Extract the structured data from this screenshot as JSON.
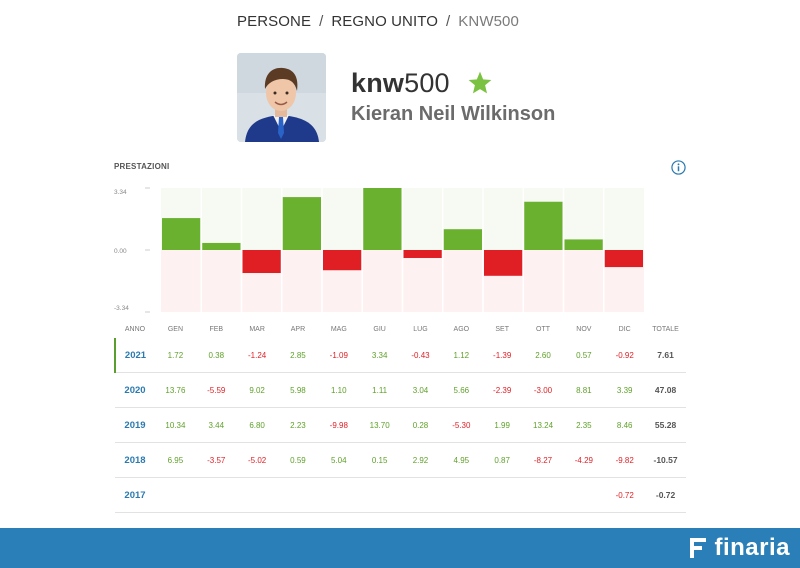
{
  "breadcrumb": {
    "items": [
      "PERSONE",
      "REGNO UNITO",
      "KNW500"
    ],
    "separator": "/"
  },
  "profile": {
    "username_letters": "knw",
    "username_digits": "500",
    "full_name": "Kieran Neil Wilkinson",
    "star_icon": "star-icon",
    "star_color": "#7cc242"
  },
  "performance": {
    "title": "PRESTAZIONI",
    "info_icon": "info-icon",
    "colors": {
      "positive": "#6ab130",
      "negative": "#e01f25",
      "positive_band": "#f7faf2",
      "negative_band": "#fdf2f1"
    }
  },
  "chart_data": {
    "type": "bar",
    "categories": [
      "GEN",
      "FEB",
      "MAR",
      "APR",
      "MAG",
      "GIU",
      "LUG",
      "AGO",
      "SET",
      "OTT",
      "NOV",
      "DIC"
    ],
    "values": [
      1.72,
      0.38,
      -1.24,
      2.85,
      -1.09,
      3.34,
      -0.43,
      1.12,
      -1.39,
      2.6,
      0.57,
      -0.92
    ],
    "ylim": [
      -3.34,
      3.34
    ],
    "ytick_labels": [
      "3.34",
      "0.00",
      "-3.34"
    ],
    "xlabel": "",
    "ylabel": "",
    "title": "",
    "legend": "none"
  },
  "table": {
    "headers": [
      "ANNO",
      "GEN",
      "FEB",
      "MAR",
      "APR",
      "MAG",
      "GIU",
      "LUG",
      "AGO",
      "SET",
      "OTT",
      "NOV",
      "DIC",
      "TOTALE"
    ],
    "rows": [
      {
        "year": "2021",
        "values": [
          "1.72",
          "0.38",
          "-1.24",
          "2.85",
          "-1.09",
          "3.34",
          "-0.43",
          "1.12",
          "-1.39",
          "2.60",
          "0.57",
          "-0.92"
        ],
        "total": "7.61",
        "selected": true
      },
      {
        "year": "2020",
        "values": [
          "13.76",
          "-5.59",
          "9.02",
          "5.98",
          "1.10",
          "1.11",
          "3.04",
          "5.66",
          "-2.39",
          "-3.00",
          "8.81",
          "3.39"
        ],
        "total": "47.08",
        "selected": false
      },
      {
        "year": "2019",
        "values": [
          "10.34",
          "3.44",
          "6.80",
          "2.23",
          "-9.98",
          "13.70",
          "0.28",
          "-5.30",
          "1.99",
          "13.24",
          "2.35",
          "8.46"
        ],
        "total": "55.28",
        "selected": false
      },
      {
        "year": "2018",
        "values": [
          "6.95",
          "-3.57",
          "-5.02",
          "0.59",
          "5.04",
          "0.15",
          "2.92",
          "4.95",
          "0.87",
          "-8.27",
          "-4.29",
          "-9.82"
        ],
        "total": "-10.57",
        "selected": false
      },
      {
        "year": "2017",
        "values": [
          "",
          "",
          "",
          "",
          "",
          "",
          "",
          "",
          "",
          "",
          "",
          "-0.72"
        ],
        "total": "-0.72",
        "selected": false
      }
    ]
  },
  "footer": {
    "brand": "finaria",
    "logo_icon": "finaria-logo-icon",
    "background": "#2a7fb8"
  }
}
